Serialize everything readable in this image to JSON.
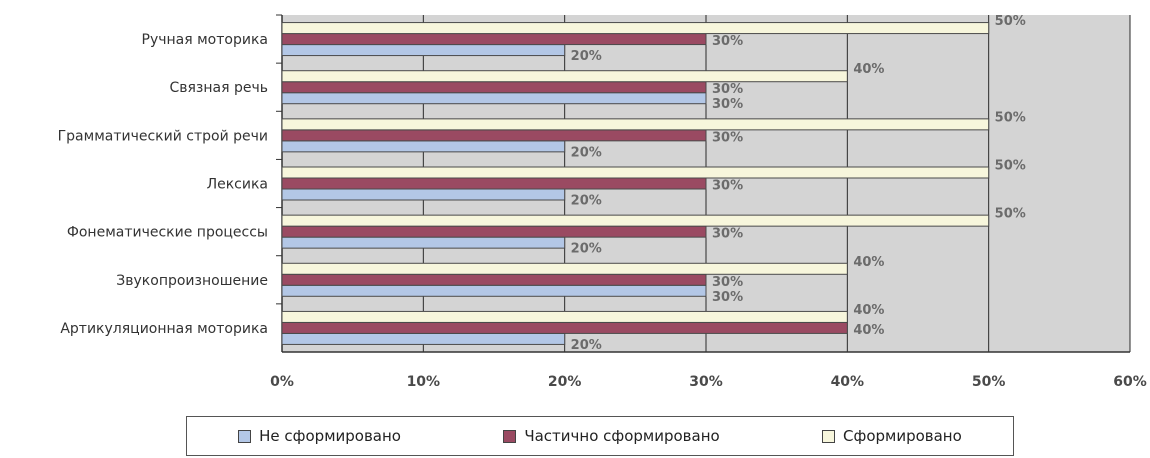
{
  "chart_data": {
    "type": "bar",
    "orientation": "horizontal",
    "categories": [
      "Артикуляционная  моторика",
      "Звукопроизношение",
      "Фонематические  процессы",
      "Лексика",
      "Грамматический  строй речи",
      "Связная  речь",
      "Ручная  моторика"
    ],
    "series": [
      {
        "name": "Не сформировано",
        "values": [
          20,
          30,
          20,
          20,
          20,
          30,
          20
        ],
        "color": "#b3c7e6"
      },
      {
        "name": "Частично сформировано",
        "values": [
          40,
          30,
          30,
          30,
          30,
          30,
          30
        ],
        "color": "#9a4a62"
      },
      {
        "name": "Сформировано",
        "values": [
          40,
          40,
          50,
          50,
          50,
          40,
          50
        ],
        "color": "#f7f6dc"
      }
    ],
    "x_ticks": [
      "0%",
      "10%",
      "20%",
      "30%",
      "40%",
      "50%",
      "60%"
    ],
    "xlim": [
      0,
      60
    ],
    "value_suffix": "%",
    "grid": true,
    "plot_background": "#d4d4d4",
    "legend_position": "bottom"
  }
}
